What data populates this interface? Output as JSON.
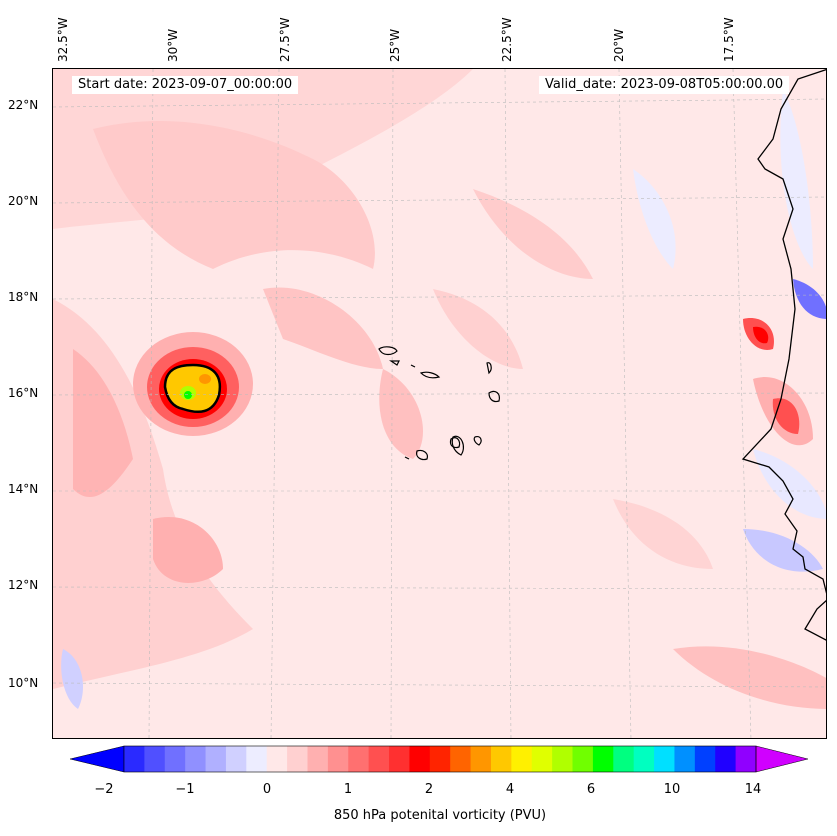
{
  "map": {
    "start_date_text": "Start date: 2023-09-07_00:00:00",
    "valid_date_text": "Valid_date: 2023-09-08T05:00:00.00",
    "lon_labels": [
      "32.5°W",
      "30°W",
      "27.5°W",
      "25°W",
      "22.5°W",
      "20°W",
      "17.5°W"
    ],
    "lat_labels": [
      "22°N",
      "20°N",
      "18°N",
      "16°N",
      "14°N",
      "12°N",
      "10°N"
    ],
    "lon_range": [
      -32.5,
      -15.0
    ],
    "lat_range": [
      8.9,
      22.8
    ]
  },
  "colorbar": {
    "title": "850 hPa potenital vorticity (PVU)",
    "tick_labels": [
      "−2",
      "−1",
      "0",
      "1",
      "2",
      "4",
      "6",
      "10",
      "14"
    ],
    "colors": [
      "#0000ff",
      "#2a2aff",
      "#5050ff",
      "#7070ff",
      "#9090ff",
      "#b0b0ff",
      "#d0d0ff",
      "#ededff",
      "#ffe8e8",
      "#ffd0d0",
      "#ffb0b0",
      "#ff9090",
      "#ff7070",
      "#ff5050",
      "#ff3030",
      "#ff0000",
      "#ff2400",
      "#ff6400",
      "#ff9600",
      "#ffc800",
      "#fff000",
      "#e0ff00",
      "#b0ff00",
      "#70ff00",
      "#00ff00",
      "#00ff80",
      "#00ffc0",
      "#00e0ff",
      "#0090ff",
      "#0040ff",
      "#2000ff",
      "#9000ff",
      "#d000ff"
    ]
  }
}
